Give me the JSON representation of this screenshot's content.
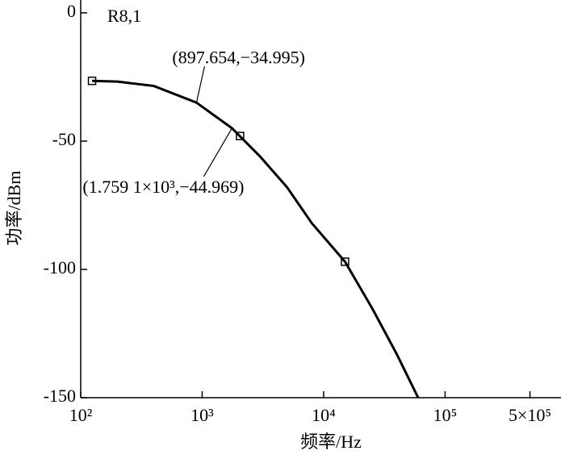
{
  "chart_data": {
    "type": "line",
    "xlabel": "频率/Hz",
    "ylabel": "功率/dBm",
    "series_label": "R8,1",
    "log_x": true,
    "xlim": [
      100,
      900000
    ],
    "xticks": [
      {
        "value": 100,
        "label": "10²"
      },
      {
        "value": 1000,
        "label": "10³"
      },
      {
        "value": 10000,
        "label": "10⁴"
      },
      {
        "value": 100000,
        "label": "10⁵"
      },
      {
        "value": 500000,
        "label": "5×10⁵"
      }
    ],
    "ylim": [
      -150,
      5
    ],
    "yticks": [
      0,
      -50,
      -100,
      -150
    ],
    "color": "#000000",
    "x": [
      124,
      200,
      400,
      897.654,
      1759.1,
      3000,
      5000,
      8000,
      15000,
      25000,
      40000,
      60000
    ],
    "values": [
      -26.5,
      -26.8,
      -28.5,
      -34.995,
      -44.969,
      -56,
      -68,
      -82,
      -97,
      -115,
      -133,
      -150
    ],
    "markers": {
      "x": [
        124,
        2050,
        15000
      ],
      "values": [
        -26.5,
        -48,
        -97
      ]
    },
    "annotations": [
      {
        "text": "(897.654,−34.995)",
        "x": 897.654,
        "y": -34.995
      },
      {
        "text": "(1.759 1×10³,−44.969)",
        "x": 1759.1,
        "y": -44.969
      }
    ]
  }
}
